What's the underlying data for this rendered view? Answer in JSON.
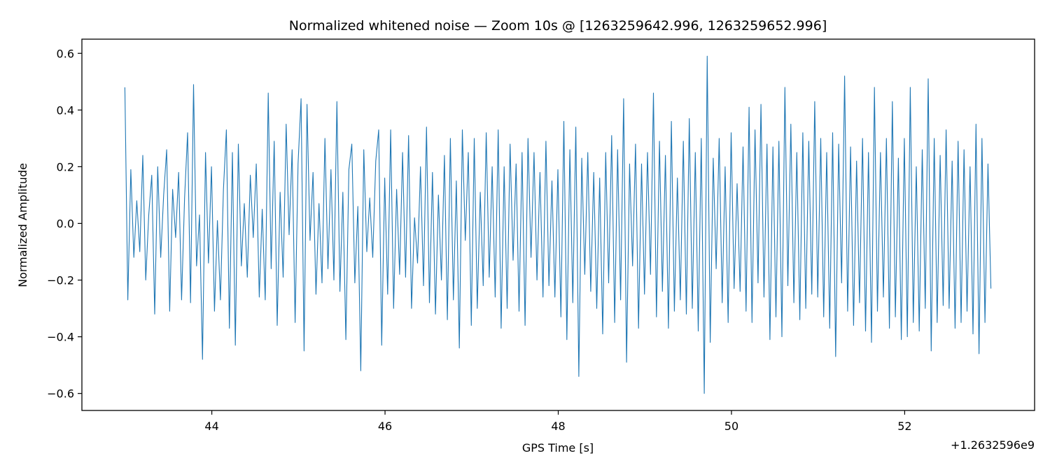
{
  "chart_data": {
    "type": "line",
    "title": "Normalized whitened noise — Zoom 10s @ [1263259642.996, 1263259652.996]",
    "xlabel": "GPS Time [s]",
    "ylabel": "Normalized Amplitude",
    "x_offset_label": "+1.2632596e9",
    "xlim": [
      42.5,
      53.5
    ],
    "ylim": [
      -0.66,
      0.65
    ],
    "x_ticks": [
      44,
      46,
      48,
      50,
      52
    ],
    "x_tick_labels": [
      "44",
      "46",
      "48",
      "50",
      "52"
    ],
    "y_ticks": [
      -0.6,
      -0.4,
      -0.2,
      0.0,
      0.2,
      0.4,
      0.6
    ],
    "y_tick_labels": [
      "−0.6",
      "−0.4",
      "−0.2",
      "0.0",
      "0.2",
      "0.4",
      "0.6"
    ],
    "grid": false,
    "color": "#1f77b4",
    "series": [
      {
        "x_start": 42.996,
        "x_end": 52.996,
        "y": [
          0.48,
          -0.27,
          0.19,
          -0.12,
          0.08,
          -0.1,
          0.24,
          -0.2,
          0.03,
          0.17,
          -0.32,
          0.2,
          -0.12,
          0.1,
          0.26,
          -0.31,
          0.12,
          -0.05,
          0.18,
          -0.27,
          0.09,
          0.32,
          -0.28,
          0.49,
          -0.15,
          0.03,
          -0.48,
          0.25,
          -0.14,
          0.2,
          -0.31,
          0.01,
          -0.27,
          0.12,
          0.33,
          -0.37,
          0.25,
          -0.43,
          0.28,
          -0.15,
          0.07,
          -0.19,
          0.17,
          -0.05,
          0.21,
          -0.26,
          0.05,
          -0.27,
          0.46,
          -0.16,
          0.29,
          -0.36,
          0.11,
          -0.19,
          0.35,
          -0.04,
          0.26,
          -0.35,
          0.21,
          0.44,
          -0.45,
          0.42,
          -0.06,
          0.18,
          -0.25,
          0.07,
          -0.21,
          0.3,
          -0.16,
          0.19,
          -0.2,
          0.43,
          -0.24,
          0.11,
          -0.41,
          0.19,
          0.28,
          -0.21,
          0.06,
          -0.52,
          0.26,
          -0.1,
          0.09,
          -0.12,
          0.22,
          0.33,
          -0.43,
          0.16,
          -0.25,
          0.33,
          -0.3,
          0.12,
          -0.18,
          0.25,
          -0.19,
          0.31,
          -0.3,
          0.02,
          -0.14,
          0.2,
          -0.22,
          0.34,
          -0.28,
          0.18,
          -0.32,
          0.1,
          -0.2,
          0.24,
          -0.34,
          0.3,
          -0.27,
          0.15,
          -0.44,
          0.33,
          -0.06,
          0.25,
          -0.36,
          0.3,
          -0.3,
          0.11,
          -0.22,
          0.32,
          -0.19,
          0.2,
          -0.26,
          0.33,
          -0.37,
          0.2,
          -0.3,
          0.28,
          -0.13,
          0.21,
          -0.31,
          0.25,
          -0.36,
          0.3,
          -0.12,
          0.25,
          -0.2,
          0.18,
          -0.26,
          0.29,
          -0.22,
          0.15,
          -0.26,
          0.19,
          -0.33,
          0.36,
          -0.41,
          0.26,
          -0.28,
          0.34,
          -0.54,
          0.23,
          -0.18,
          0.25,
          -0.24,
          0.18,
          -0.3,
          0.16,
          -0.39,
          0.25,
          -0.21,
          0.31,
          -0.35,
          0.26,
          -0.27,
          0.44,
          -0.49,
          0.21,
          -0.15,
          0.28,
          -0.37,
          0.21,
          -0.25,
          0.25,
          -0.18,
          0.46,
          -0.33,
          0.29,
          -0.24,
          0.24,
          -0.37,
          0.36,
          -0.31,
          0.16,
          -0.27,
          0.29,
          -0.32,
          0.37,
          -0.3,
          0.25,
          -0.38,
          0.3,
          -0.6,
          0.59,
          -0.42,
          0.23,
          -0.16,
          0.3,
          -0.28,
          0.2,
          -0.35,
          0.32,
          -0.23,
          0.14,
          -0.24,
          0.27,
          -0.31,
          0.41,
          -0.35,
          0.33,
          -0.21,
          0.42,
          -0.26,
          0.28,
          -0.41,
          0.27,
          -0.33,
          0.29,
          -0.4,
          0.48,
          -0.22,
          0.35,
          -0.28,
          0.25,
          -0.34,
          0.32,
          -0.3,
          0.29,
          -0.25,
          0.43,
          -0.26,
          0.3,
          -0.33,
          0.25,
          -0.37,
          0.32,
          -0.47,
          0.28,
          -0.21,
          0.52,
          -0.31,
          0.27,
          -0.36,
          0.22,
          -0.28,
          0.3,
          -0.38,
          0.25,
          -0.42,
          0.48,
          -0.31,
          0.25,
          -0.26,
          0.3,
          -0.37,
          0.43,
          -0.33,
          0.23,
          -0.41,
          0.3,
          -0.4,
          0.48,
          -0.35,
          0.2,
          -0.38,
          0.26,
          -0.3,
          0.51,
          -0.45,
          0.3,
          -0.35,
          0.24,
          -0.29,
          0.33,
          -0.3,
          0.22,
          -0.37,
          0.29,
          -0.35,
          0.26,
          -0.31,
          0.2,
          -0.39,
          0.35,
          -0.46,
          0.3,
          -0.35,
          0.21,
          -0.23
        ]
      }
    ]
  }
}
